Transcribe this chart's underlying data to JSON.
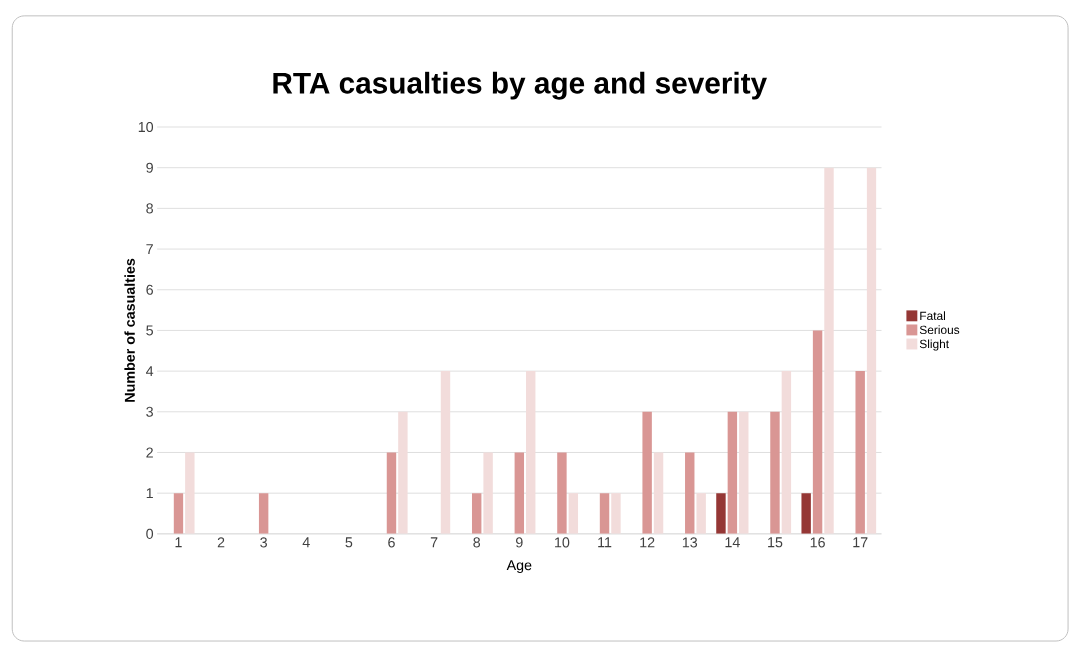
{
  "chart_data": {
    "type": "bar",
    "title": "RTA casualties by age and severity",
    "xlabel": "Age",
    "ylabel": "Number of casualties",
    "categories": [
      "1",
      "2",
      "3",
      "4",
      "5",
      "6",
      "7",
      "8",
      "9",
      "10",
      "11",
      "12",
      "13",
      "14",
      "15",
      "16",
      "17"
    ],
    "series": [
      {
        "name": "Fatal",
        "color": "#953735",
        "values": [
          0,
          0,
          0,
          0,
          0,
          0,
          0,
          0,
          0,
          0,
          0,
          0,
          0,
          1,
          0,
          1,
          0
        ]
      },
      {
        "name": "Serious",
        "color": "#d99694",
        "values": [
          1,
          0,
          1,
          0,
          0,
          2,
          0,
          1,
          2,
          2,
          1,
          3,
          2,
          3,
          3,
          5,
          4
        ]
      },
      {
        "name": "Slight",
        "color": "#f2dcdb",
        "values": [
          2,
          0,
          0,
          0,
          0,
          3,
          4,
          2,
          4,
          1,
          1,
          2,
          1,
          3,
          4,
          9,
          9
        ]
      }
    ],
    "ylim": [
      0,
      10
    ],
    "yticks": [
      0,
      1,
      2,
      3,
      4,
      5,
      6,
      7,
      8,
      9,
      10
    ],
    "grid": "y",
    "legend": "right"
  }
}
